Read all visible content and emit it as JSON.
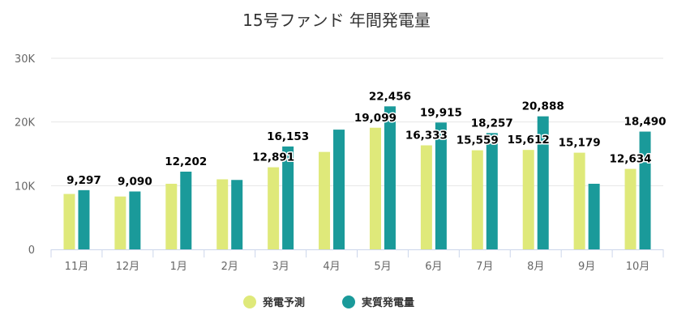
{
  "chart_data": {
    "type": "bar",
    "title": "15号ファンド 年間発電量",
    "categories": [
      "11月",
      "12月",
      "1月",
      "2月",
      "3月",
      "4月",
      "5月",
      "6月",
      "7月",
      "8月",
      "9月",
      "10月"
    ],
    "ylim": [
      0,
      30000
    ],
    "yticks": [
      {
        "value": 0,
        "label": "0"
      },
      {
        "value": 10000,
        "label": "10K"
      },
      {
        "value": 20000,
        "label": "20K"
      },
      {
        "value": 30000,
        "label": "30K"
      }
    ],
    "grid": true,
    "legend_position": "bottom",
    "series": [
      {
        "name": "発電予測",
        "color": "#dfe97a",
        "values": [
          8700,
          8300,
          10300,
          11000,
          12891,
          15300,
          19099,
          16333,
          15559,
          15612,
          15179,
          12634
        ],
        "labels": [
          "",
          "",
          "",
          "",
          "12,891",
          "",
          "19,099",
          "16,333",
          "15,559",
          "15,612",
          "15,179",
          "12,634"
        ]
      },
      {
        "name": "実質発電量",
        "color": "#1a9a9a",
        "values": [
          9297,
          9090,
          12202,
          10900,
          16153,
          18800,
          22456,
          19915,
          18257,
          20888,
          10300,
          18490
        ],
        "labels": [
          "9,297",
          "9,090",
          "12,202",
          "",
          "16,153",
          "",
          "22,456",
          "19,915",
          "18,257",
          "20,888",
          "",
          "18,490"
        ]
      }
    ]
  }
}
